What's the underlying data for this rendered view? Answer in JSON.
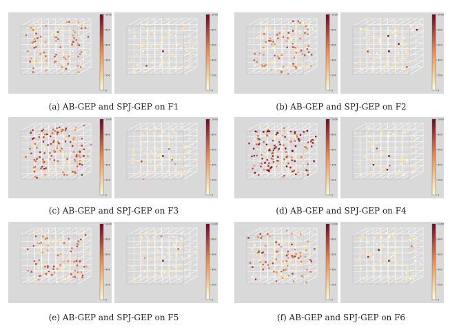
{
  "captions": [
    "(a) AB-GEP and SPJ-GEP on F1",
    "(b) AB-GEP and SPJ-GEP on F2",
    "(c) AB-GEP and SPJ-GEP on F3",
    "(d) AB-GEP and SPJ-GEP on F4",
    "(e) AB-GEP and SPJ-GEP on F5",
    "(f) AB-GEP and SPJ-GEP on F6"
  ],
  "colors": {
    "plot_bg": "#d9d9d9",
    "grid": "#ffffff",
    "cmap_low": "#ffffcc",
    "cmap_mid": "#fd8d3c",
    "cmap_high": "#800026"
  },
  "chart_data": [
    {
      "type": "scatter",
      "function": "F1",
      "plots": [
        {
          "method": "AB-GEP",
          "density": 0.28,
          "intensity": 0.35
        },
        {
          "method": "SPJ-GEP",
          "density": 0.02,
          "intensity": 0.6
        }
      ],
      "colorbar": {
        "ticks": [
          "1000",
          "800",
          "600",
          "400",
          "200",
          "0"
        ],
        "range": [
          0,
          1000
        ]
      }
    },
    {
      "type": "scatter",
      "function": "F2",
      "plots": [
        {
          "method": "AB-GEP",
          "density": 0.32,
          "intensity": 0.35
        },
        {
          "method": "SPJ-GEP",
          "density": 0.02,
          "intensity": 0.7
        }
      ],
      "colorbar": {
        "ticks": [
          "1000",
          "800",
          "600",
          "400",
          "200",
          "0"
        ],
        "range": [
          0,
          1000
        ]
      }
    },
    {
      "type": "scatter",
      "function": "F3",
      "plots": [
        {
          "method": "AB-GEP",
          "density": 0.5,
          "intensity": 0.45
        },
        {
          "method": "SPJ-GEP",
          "density": 0.02,
          "intensity": 0.6
        }
      ],
      "colorbar": {
        "ticks": [
          "1000",
          "800",
          "600",
          "400",
          "200",
          "0"
        ],
        "range": [
          0,
          1000
        ]
      }
    },
    {
      "type": "scatter",
      "function": "F4",
      "plots": [
        {
          "method": "AB-GEP",
          "density": 0.55,
          "intensity": 0.6
        },
        {
          "method": "SPJ-GEP",
          "density": 0.02,
          "intensity": 0.6
        }
      ],
      "colorbar": {
        "ticks": [
          "1000",
          "800",
          "600",
          "400",
          "200",
          "0"
        ],
        "range": [
          0,
          1000
        ]
      }
    },
    {
      "type": "scatter",
      "function": "F5",
      "plots": [
        {
          "method": "AB-GEP",
          "density": 0.3,
          "intensity": 0.35
        },
        {
          "method": "SPJ-GEP",
          "density": 0.02,
          "intensity": 0.6
        }
      ],
      "colorbar": {
        "ticks": [
          "1000",
          "800",
          "600",
          "400",
          "200",
          "0"
        ],
        "range": [
          0,
          1000
        ]
      }
    },
    {
      "type": "scatter",
      "function": "F6",
      "plots": [
        {
          "method": "AB-GEP",
          "density": 0.32,
          "intensity": 0.4
        },
        {
          "method": "SPJ-GEP",
          "density": 0.02,
          "intensity": 0.6
        }
      ],
      "colorbar": {
        "ticks": [
          "1000",
          "800",
          "600",
          "400",
          "200",
          "0"
        ],
        "range": [
          0,
          1000
        ]
      }
    }
  ]
}
